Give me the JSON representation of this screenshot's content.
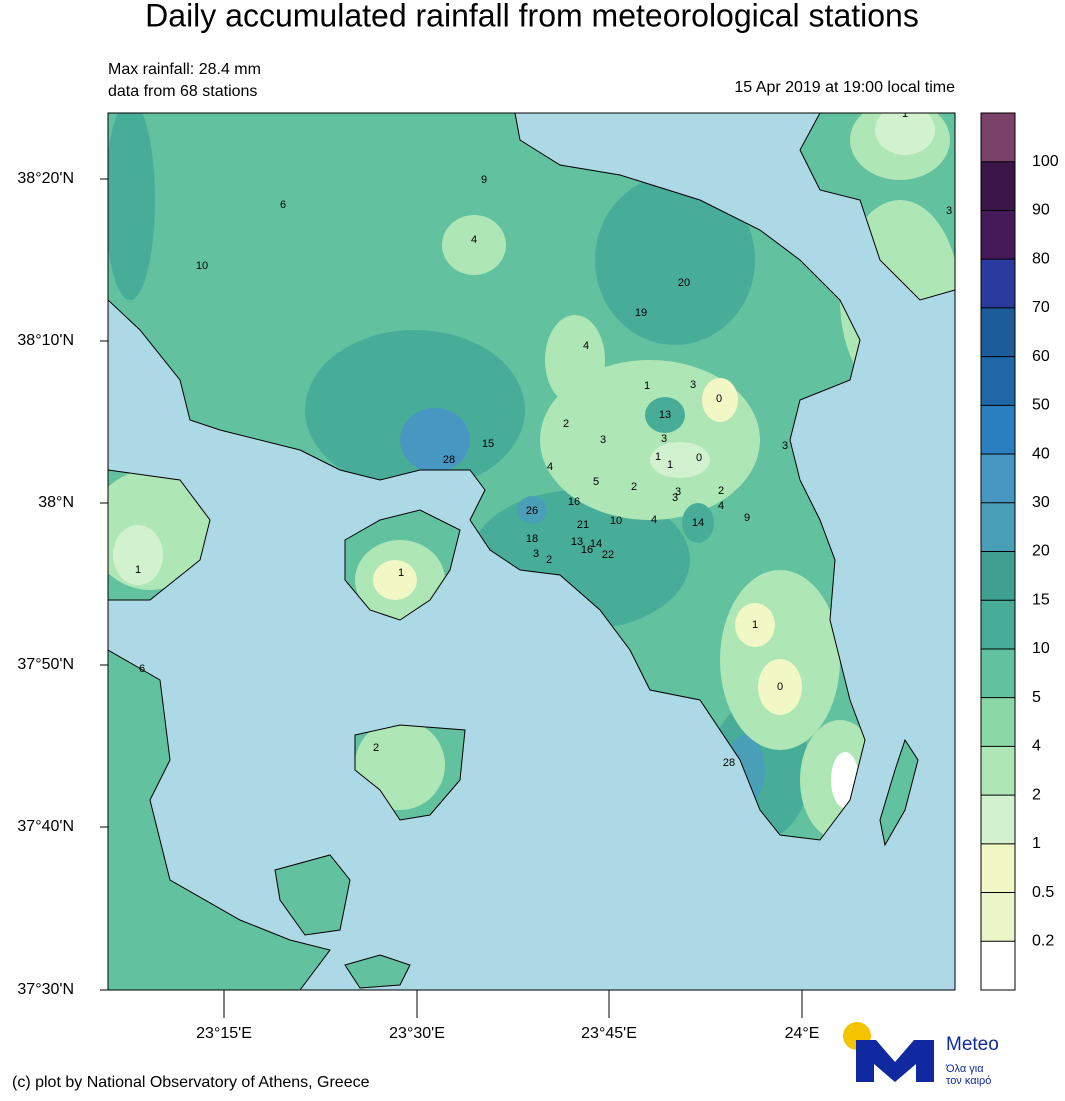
{
  "header": {
    "title": "Daily accumulated rainfall from meteorological stations",
    "max_rainfall": "Max rainfall: 28.4 mm",
    "stations_note": "data from 68 stations",
    "timestamp": "15 Apr 2019 at 19:00 local time"
  },
  "map": {
    "lat_labels": [
      "38°20'N",
      "38°10'N",
      "38°N",
      "37°50'N",
      "37°40'N",
      "37°30'N"
    ],
    "lon_labels": [
      "23°15'E",
      "23°30'E",
      "23°45'E",
      "24°E"
    ],
    "stations": [
      9,
      6,
      4,
      10,
      20,
      19,
      4,
      1,
      3,
      0,
      13,
      2,
      3,
      3,
      15,
      28,
      1,
      1,
      0,
      3,
      4,
      5,
      2,
      3,
      3,
      2,
      4,
      16,
      26,
      9,
      10,
      4,
      14,
      21,
      18,
      13,
      14,
      16,
      22,
      3,
      2,
      1,
      1,
      3,
      1,
      1,
      0,
      28,
      2,
      6
    ]
  },
  "colorbar": {
    "levels": [
      0.2,
      0.5,
      1,
      2,
      4,
      5,
      10,
      15,
      20,
      30,
      40,
      50,
      60,
      70,
      80,
      90,
      100
    ],
    "colors": [
      "#ffffff",
      "#eaf5c8",
      "#f2f7c6",
      "#d2f2cf",
      "#aee6b6",
      "#8bd8a7",
      "#62c19f",
      "#48ad98",
      "#3f9f90",
      "#4a9fb8",
      "#4797c2",
      "#2a7fc1",
      "#1f67a6",
      "#1d5c9a",
      "#2a3a9e",
      "#461a58",
      "#3c1548",
      "#7a4269"
    ]
  },
  "logo": {
    "name": "Meteo",
    "tagline": [
      "Όλα για",
      "τον καιρό"
    ]
  },
  "footer": "(c) plot by National Observatory of Athens, Greece"
}
